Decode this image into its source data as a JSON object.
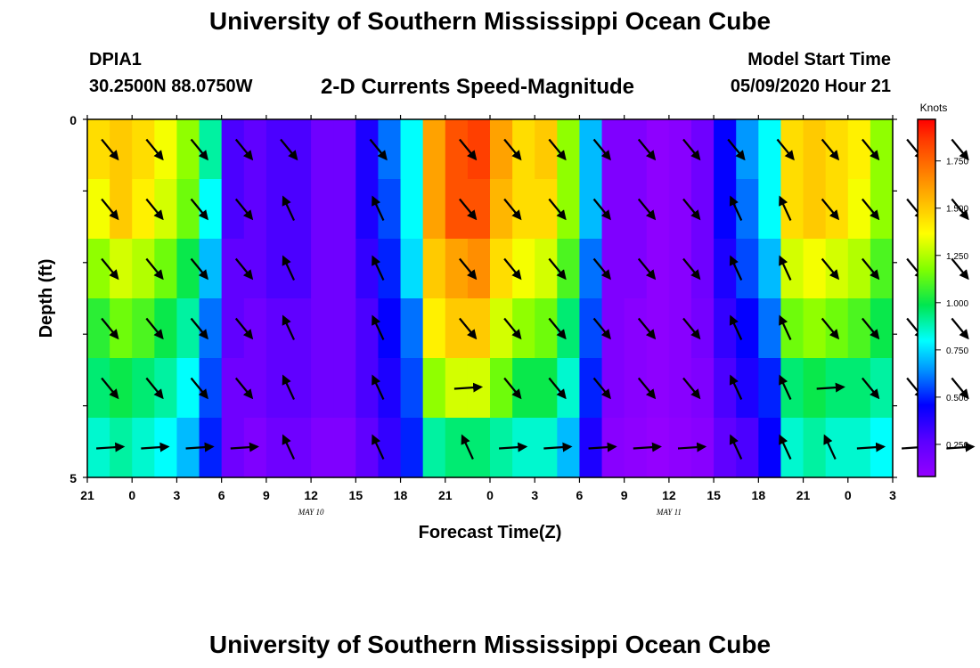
{
  "header": {
    "title": "University of Southern Mississippi Ocean Cube",
    "station_id": "DPIA1",
    "station_coords": "30.2500N 88.0750W",
    "chart_title": "2-D Currents Speed-Magnitude",
    "model_label": "Model Start Time",
    "model_time": "05/09/2020 Hour 21"
  },
  "footer": {
    "title": "University of Southern Mississippi Ocean Cube"
  },
  "chart_data": {
    "type": "heatmap",
    "title": "2-D Currents Speed-Magnitude",
    "xlabel": "Forecast Time(Z)",
    "ylabel": "Depth (ft)",
    "ylim": [
      0,
      5
    ],
    "y_ticks": [
      "0",
      "5"
    ],
    "x_tick_labels": [
      "21",
      "0",
      "3",
      "6",
      "9",
      "12",
      "15",
      "18",
      "21",
      "0",
      "3",
      "6",
      "9",
      "12",
      "15",
      "18",
      "21",
      "0",
      "3"
    ],
    "date_labels": [
      {
        "text": "MAY  10",
        "at_index": 5
      },
      {
        "text": "MAY  11",
        "at_index": 13
      }
    ],
    "units": "Knots",
    "colorbar_ticks": [
      "1.750",
      "1.500",
      "1.250",
      "1.000",
      "0.750",
      "0.500",
      "0.250"
    ],
    "colorbar_range": [
      0.08,
      1.97
    ],
    "speed_rows": [
      [
        1.45,
        1.5,
        1.45,
        1.35,
        1.2,
        0.9,
        0.3,
        0.25,
        0.3,
        0.3,
        0.2,
        0.2,
        0.4,
        0.6,
        0.8,
        1.6,
        1.8,
        1.85,
        1.6,
        1.45,
        1.5,
        1.2,
        0.7,
        0.15,
        0.15,
        0.1,
        0.12,
        0.2,
        0.45,
        0.65,
        0.8,
        1.45,
        1.5,
        1.45,
        1.4,
        1.2
      ],
      [
        1.35,
        1.5,
        1.4,
        1.3,
        1.15,
        0.8,
        0.3,
        0.25,
        0.3,
        0.3,
        0.2,
        0.2,
        0.4,
        0.55,
        0.8,
        1.6,
        1.8,
        1.8,
        1.55,
        1.45,
        1.45,
        1.2,
        0.7,
        0.15,
        0.15,
        0.1,
        0.12,
        0.2,
        0.45,
        0.6,
        0.8,
        1.45,
        1.5,
        1.45,
        1.35,
        1.2
      ],
      [
        1.2,
        1.3,
        1.25,
        1.15,
        1.0,
        0.7,
        0.25,
        0.25,
        0.3,
        0.3,
        0.2,
        0.2,
        0.35,
        0.5,
        0.75,
        1.5,
        1.6,
        1.65,
        1.45,
        1.35,
        1.3,
        1.1,
        0.6,
        0.15,
        0.15,
        0.1,
        0.12,
        0.2,
        0.4,
        0.55,
        0.7,
        1.3,
        1.35,
        1.3,
        1.25,
        1.1
      ],
      [
        1.05,
        1.15,
        1.1,
        1.0,
        0.9,
        0.6,
        0.25,
        0.2,
        0.25,
        0.25,
        0.2,
        0.2,
        0.3,
        0.45,
        0.6,
        1.4,
        1.5,
        1.5,
        1.3,
        1.2,
        1.15,
        0.95,
        0.55,
        0.15,
        0.12,
        0.1,
        0.12,
        0.18,
        0.35,
        0.45,
        0.6,
        1.15,
        1.2,
        1.15,
        1.1,
        1.0
      ],
      [
        0.95,
        1.0,
        0.95,
        0.9,
        0.8,
        0.55,
        0.2,
        0.2,
        0.25,
        0.25,
        0.2,
        0.2,
        0.3,
        0.4,
        0.55,
        1.2,
        1.3,
        1.3,
        1.15,
        1.0,
        1.0,
        0.85,
        0.5,
        0.15,
        0.12,
        0.1,
        0.12,
        0.15,
        0.3,
        0.4,
        0.5,
        0.95,
        1.0,
        0.95,
        0.95,
        0.9
      ],
      [
        0.85,
        0.9,
        0.85,
        0.8,
        0.7,
        0.5,
        0.2,
        0.15,
        0.2,
        0.2,
        0.15,
        0.15,
        0.25,
        0.35,
        0.5,
        0.9,
        0.95,
        0.95,
        0.9,
        0.85,
        0.85,
        0.7,
        0.4,
        0.12,
        0.1,
        0.08,
        0.1,
        0.12,
        0.25,
        0.3,
        0.45,
        0.85,
        0.9,
        0.85,
        0.85,
        0.8
      ]
    ],
    "arrow_times": [
      0.5,
      1.5,
      2.5,
      3.5,
      4.5,
      6.5,
      8.5,
      9.5,
      10.5,
      11.5,
      12.5,
      13.5,
      14.5,
      15.6,
      16.6,
      17.5,
      18.5,
      19.5
    ],
    "arrow_rows": [
      [
        1,
        1,
        1,
        1,
        1,
        1,
        1,
        1,
        1,
        1,
        1,
        1,
        1,
        1,
        1,
        1,
        1,
        1
      ],
      [
        1,
        1,
        1,
        1,
        -1,
        -1,
        1,
        1,
        1,
        1,
        1,
        1,
        -1,
        -1,
        1,
        1,
        1,
        1
      ],
      [
        1,
        1,
        1,
        1,
        -1,
        -1,
        1,
        1,
        1,
        1,
        1,
        1,
        -1,
        -1,
        1,
        1,
        1,
        1
      ],
      [
        1,
        1,
        1,
        1,
        -1,
        -1,
        1,
        1,
        1,
        1,
        1,
        1,
        -1,
        -1,
        1,
        1,
        1,
        1
      ],
      [
        1,
        1,
        1,
        1,
        -1,
        -1,
        0,
        1,
        1,
        1,
        1,
        1,
        -1,
        -1,
        0,
        1,
        1,
        1
      ],
      [
        0,
        0,
        0,
        0,
        -1,
        -1,
        -1,
        0,
        0,
        0,
        0,
        0,
        -1,
        -1,
        -1,
        0,
        0,
        0
      ]
    ]
  }
}
